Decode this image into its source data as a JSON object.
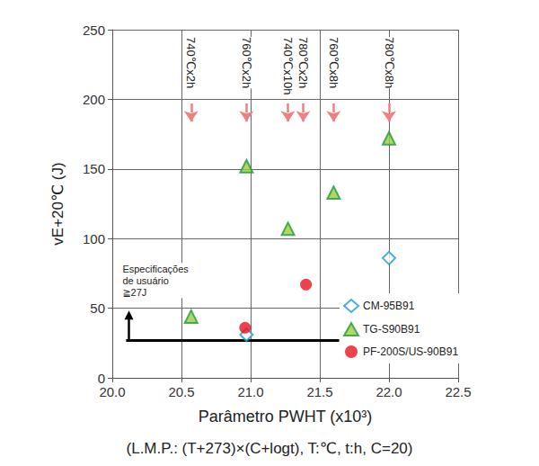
{
  "chart_data": {
    "type": "scatter",
    "x_label": "Parâmetro PWHT (x10³)",
    "subtitle": "(L.M.P.: (T+273)×(C+logt), T:℃, t:h, C=20)",
    "y_label": "vE+20℃ (J)",
    "xlim": [
      20,
      22.5
    ],
    "xticks": [
      {
        "value": 20,
        "label": "20.0"
      },
      20.5,
      {
        "value": 21,
        "label": "21.0"
      },
      21.5,
      {
        "value": 22,
        "label": "22.0"
      },
      22.5
    ],
    "ylim": [
      0,
      250
    ],
    "yticks": [
      0,
      50,
      100,
      150,
      200,
      250
    ],
    "grid": true,
    "legend": "lower right",
    "series": [
      {
        "name": "CM-95B91",
        "color": "#1a9ae0",
        "marker": "diamond",
        "x": [
          20.97,
          22.0
        ],
        "values": [
          31,
          86
        ]
      },
      {
        "name": "TG-S90B91",
        "color": "#1e9a3c",
        "marker": "triangle",
        "x": [
          20.57,
          20.97,
          21.27,
          21.6,
          22.0
        ],
        "values": [
          44,
          152,
          107,
          133,
          172
        ]
      },
      {
        "name": "PF-200S/US-90B91",
        "color": "#e8141e",
        "marker": "circle",
        "x": [
          20.96,
          21.4
        ],
        "values": [
          36,
          67
        ]
      }
    ],
    "pwht_conditions": {
      "color": "#f08080",
      "arrow_from": 197,
      "arrow_to": 184,
      "items": [
        {
          "label": "740℃x2h",
          "x": 20.57
        },
        {
          "label": "760℃x2h",
          "x": 20.97
        },
        {
          "label": "740℃x10h",
          "x": 21.27
        },
        {
          "label": "780℃x2h",
          "x": 21.38
        },
        {
          "label": "760℃x8h",
          "x": 21.6
        },
        {
          "label": "780℃x8h",
          "x": 22.0
        }
      ]
    },
    "specification": {
      "text": "Especificações\nde usuário\n≧27J",
      "y": 27,
      "x_start": 20.1,
      "x_end": 21.64,
      "arrow_x": 20.12,
      "arrow_to": 45,
      "color": "#000000"
    }
  }
}
